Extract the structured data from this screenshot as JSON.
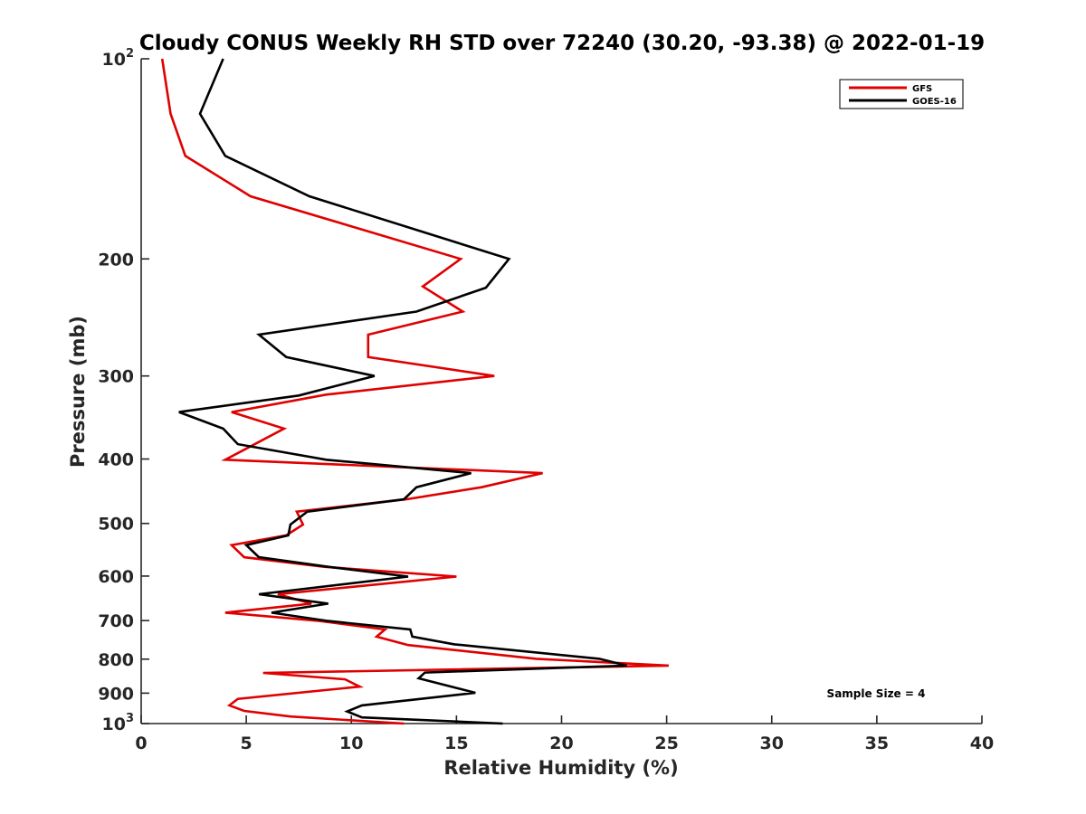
{
  "chart_data": {
    "type": "line",
    "title": "Cloudy CONUS Weekly RH STD over 72240 (30.20, -93.38) @ 2022-01-19",
    "xlabel": "Relative Humidity (%)",
    "ylabel": "Pressure (mb)",
    "xlim": [
      0,
      40
    ],
    "ylim": [
      100,
      1000
    ],
    "yscale": "log",
    "yreversed": true,
    "xticks": [
      0,
      5,
      10,
      15,
      20,
      25,
      30,
      35,
      40
    ],
    "xtick_labels": [
      "0",
      "5",
      "10",
      "15",
      "20",
      "25",
      "30",
      "35",
      "40"
    ],
    "yticks": [
      100,
      200,
      300,
      400,
      500,
      600,
      700,
      800,
      900,
      1000
    ],
    "ytick_labels": [
      {
        "base": "10",
        "exp": "2"
      },
      {
        "text": "200"
      },
      {
        "text": "300"
      },
      {
        "text": "400"
      },
      {
        "text": "500"
      },
      {
        "text": "600"
      },
      {
        "text": "700"
      },
      {
        "text": "800"
      },
      {
        "text": "900"
      },
      {
        "base": "10",
        "exp": "3"
      }
    ],
    "grid": false,
    "legend_position": "top-right",
    "annotation": "Sample Size = 4",
    "series": [
      {
        "name": "GFS",
        "color": "#e00000",
        "points": [
          [
            1.0,
            100
          ],
          [
            1.4,
            121
          ],
          [
            2.1,
            140
          ],
          [
            5.2,
            161
          ],
          [
            15.2,
            200
          ],
          [
            13.4,
            220
          ],
          [
            15.3,
            240
          ],
          [
            10.8,
            260
          ],
          [
            10.8,
            281
          ],
          [
            16.8,
            300
          ],
          [
            8.8,
            320
          ],
          [
            4.3,
            340
          ],
          [
            6.8,
            360
          ],
          [
            4.0,
            401
          ],
          [
            19.1,
            420
          ],
          [
            16.2,
            441
          ],
          [
            12.6,
            460
          ],
          [
            7.4,
            480
          ],
          [
            7.7,
            502
          ],
          [
            6.9,
            521
          ],
          [
            4.3,
            539
          ],
          [
            4.9,
            562
          ],
          [
            8.7,
            581
          ],
          [
            15.0,
            601
          ],
          [
            6.5,
            639
          ],
          [
            8.1,
            660
          ],
          [
            4.0,
            681
          ],
          [
            8.5,
            701
          ],
          [
            11.6,
            722
          ],
          [
            11.2,
            740
          ],
          [
            12.7,
            762
          ],
          [
            18.8,
            799
          ],
          [
            25.1,
            818
          ],
          [
            5.8,
            839
          ],
          [
            9.7,
            858
          ],
          [
            10.4,
            880
          ],
          [
            4.6,
            918
          ],
          [
            4.2,
            939
          ],
          [
            4.9,
            957
          ],
          [
            7.1,
            976
          ],
          [
            12.5,
            1000
          ]
        ]
      },
      {
        "name": "GOES-16",
        "color": "#000000",
        "points": [
          [
            3.9,
            100
          ],
          [
            2.8,
            121
          ],
          [
            4.0,
            140
          ],
          [
            8.0,
            161
          ],
          [
            17.5,
            200
          ],
          [
            16.4,
            221
          ],
          [
            13.1,
            240
          ],
          [
            5.6,
            260
          ],
          [
            6.9,
            281
          ],
          [
            11.1,
            300
          ],
          [
            7.5,
            321
          ],
          [
            1.8,
            340
          ],
          [
            3.9,
            360
          ],
          [
            4.6,
            380
          ],
          [
            8.8,
            401
          ],
          [
            15.7,
            420
          ],
          [
            13.1,
            441
          ],
          [
            12.5,
            460
          ],
          [
            7.9,
            480
          ],
          [
            7.1,
            502
          ],
          [
            7.0,
            521
          ],
          [
            5.0,
            539
          ],
          [
            5.6,
            562
          ],
          [
            8.9,
            581
          ],
          [
            12.7,
            601
          ],
          [
            5.6,
            639
          ],
          [
            8.9,
            660
          ],
          [
            6.2,
            681
          ],
          [
            8.9,
            701
          ],
          [
            12.8,
            722
          ],
          [
            12.9,
            740
          ],
          [
            14.9,
            760
          ],
          [
            21.8,
            799
          ],
          [
            23.1,
            818
          ],
          [
            13.5,
            838
          ],
          [
            13.2,
            855
          ],
          [
            15.9,
            899
          ],
          [
            10.5,
            939
          ],
          [
            9.8,
            959
          ],
          [
            10.5,
            979
          ],
          [
            17.2,
            1000
          ]
        ]
      }
    ]
  }
}
